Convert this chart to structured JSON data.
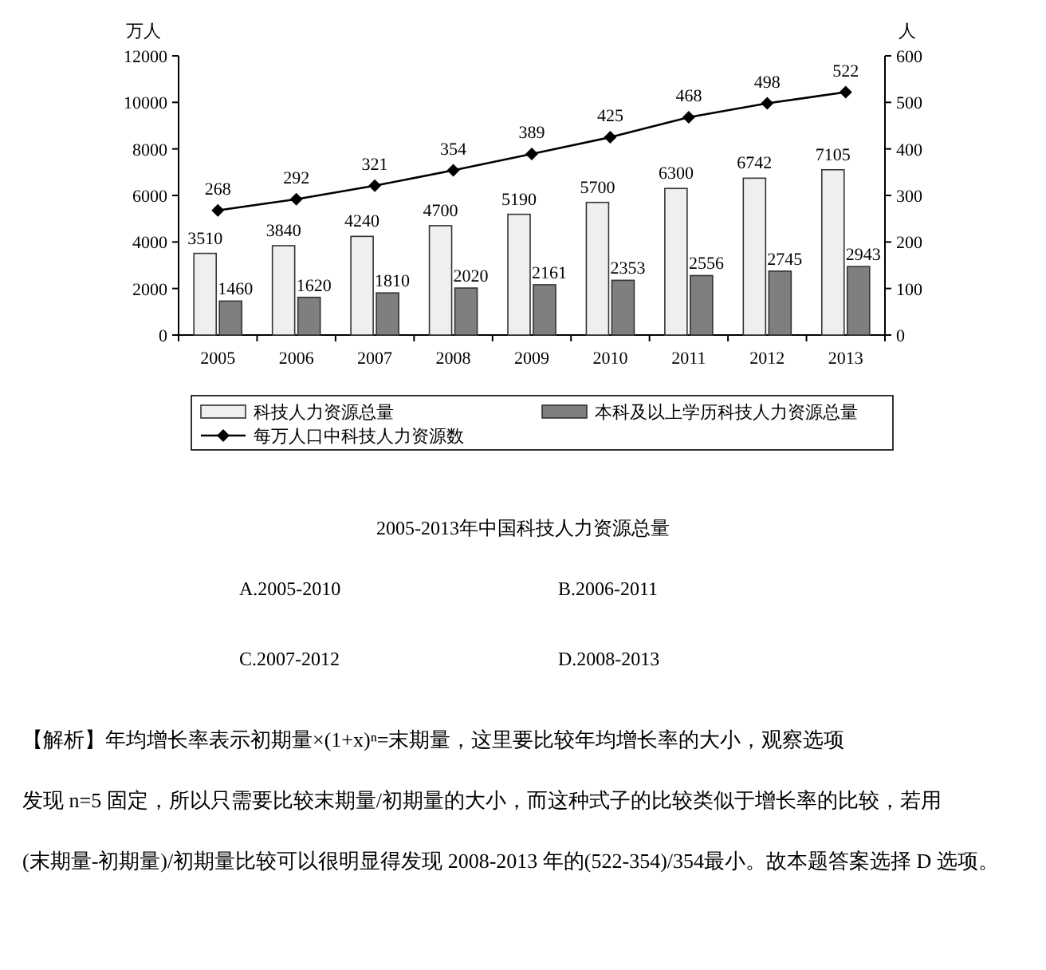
{
  "chart_data": {
    "type": "bar",
    "title": "2005-2013年中国科技人力资源总量",
    "ylabel": "万人",
    "y2label": "人",
    "categories": [
      "2005",
      "2006",
      "2007",
      "2008",
      "2009",
      "2010",
      "2011",
      "2012",
      "2013"
    ],
    "series": [
      {
        "name": "科技人力资源总量",
        "color": "#efefef",
        "values": [
          3510,
          3840,
          4240,
          4700,
          5190,
          5700,
          6300,
          6742,
          7105
        ]
      },
      {
        "name": "本科及以上学历科技人力资源总量",
        "color": "#7f7f7f",
        "values": [
          1460,
          1620,
          1810,
          2020,
          2161,
          2353,
          2556,
          2745,
          2943
        ]
      },
      {
        "name": "每万人口中科技人力资源数",
        "type": "line",
        "axis": "y2",
        "color": "#000000",
        "marker": "diamond",
        "values": [
          268,
          292,
          321,
          354,
          389,
          425,
          468,
          498,
          522
        ]
      }
    ],
    "ylim": [
      0,
      12000
    ],
    "yticks": [
      0,
      2000,
      4000,
      6000,
      8000,
      10000,
      12000
    ],
    "y2lim": [
      0,
      600
    ],
    "y2ticks": [
      0,
      100,
      200,
      300,
      400,
      500,
      600
    ],
    "data_labels": true,
    "grid": false,
    "legend": "bottom",
    "annotations": [
      "A.2005-2010",
      "B.2006-2011",
      "C.2007-2012",
      "D.2008-2013",
      "【解析】年均增长率表示初期量×(1+x)ⁿ=末期量，这里要比较年均增长率的大小，观察选项",
      "发现 n=5 固定，所以只需要比较末期量/初期量的大小，而这种式子的比较类似于增长率的比较，若用",
      "(末期量-初期量)/初期量比较可以很明显得发现 2008-2013 年的(522-354)/354最小。故本题答案选择 D 选项。"
    ]
  }
}
